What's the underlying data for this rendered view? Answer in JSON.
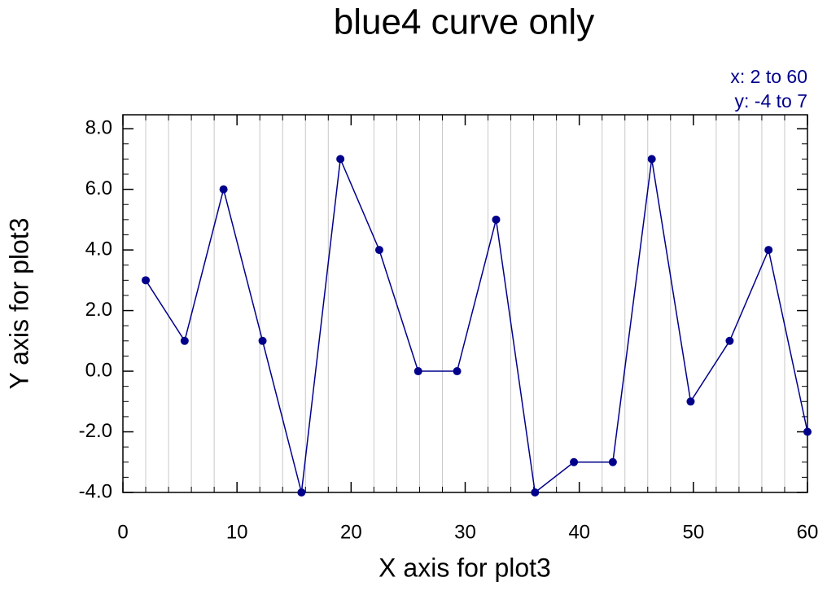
{
  "chart_data": {
    "type": "line",
    "title": "blue4 curve only",
    "xlabel": "X axis for plot3",
    "ylabel": "Y axis for plot3",
    "annotations": [
      "x: 2 to 60",
      "y: -4 to 7"
    ],
    "x": [
      2,
      5.41,
      8.82,
      12.24,
      15.65,
      19.06,
      22.47,
      25.88,
      29.29,
      32.71,
      36.12,
      39.53,
      42.94,
      46.35,
      49.76,
      53.18,
      56.59,
      60
    ],
    "series": [
      {
        "color": "#00008b",
        "values": [
          3,
          1,
          6,
          1,
          -4,
          7,
          4,
          0,
          0,
          5,
          -4,
          -3,
          -3,
          7,
          -1,
          1,
          4,
          -2
        ]
      }
    ],
    "xlim": [
      0,
      60
    ],
    "ylim": [
      -4,
      8.46
    ],
    "xticks": [
      0,
      10,
      20,
      30,
      40,
      50,
      60
    ],
    "xminorticks": [
      2,
      4,
      6,
      8,
      12,
      14,
      16,
      18,
      22,
      24,
      26,
      28,
      32,
      34,
      36,
      38,
      42,
      44,
      46,
      48,
      52,
      54,
      56,
      58
    ],
    "yticks": [
      {
        "value": -4,
        "label": "-4.0"
      },
      {
        "value": -2,
        "label": "-2.0"
      },
      {
        "value": 0,
        "label": "0.0"
      },
      {
        "value": 2,
        "label": "2.0"
      },
      {
        "value": 4,
        "label": "4.0"
      },
      {
        "value": 6,
        "label": "6.0"
      },
      {
        "value": 8,
        "label": "8.0"
      }
    ],
    "yminorticks": [
      -3.5,
      -3,
      -2.5,
      -1.5,
      -1,
      -0.5,
      0.5,
      1,
      1.5,
      2.5,
      3,
      3.5,
      4.5,
      5,
      5.5,
      6.5,
      7,
      7.5
    ],
    "grid": "x-minor"
  }
}
